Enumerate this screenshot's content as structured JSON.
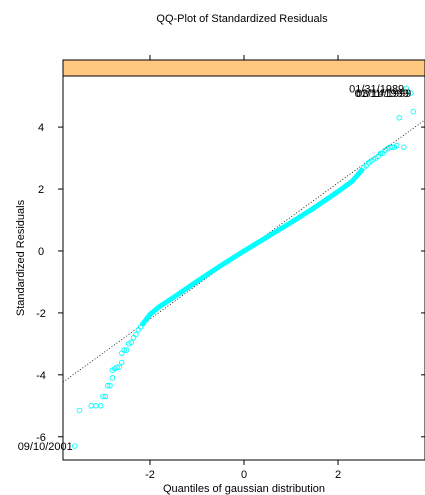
{
  "chart_data": {
    "type": "scatter",
    "title": "QQ-Plot of Standardized Residuals",
    "xlabel": "Quantiles of gaussian distribution",
    "ylabel": "Standardized Residuals",
    "strip_label": "",
    "xlim": [
      -3.85,
      3.85
    ],
    "ylim": [
      -6.75,
      5.65
    ],
    "x_ticks": [
      -2,
      0,
      2
    ],
    "y_ticks": [
      -6,
      -4,
      -2,
      0,
      2,
      4
    ],
    "x_tick_labels": [
      "-2",
      "0",
      "2"
    ],
    "y_tick_labels": [
      "-6",
      "-4",
      "-2",
      "0",
      "2",
      "4"
    ],
    "reference_line": {
      "intercept": 0,
      "slope": 1.1
    },
    "point_color": "#00ffff",
    "strip_color": "#ffc880",
    "points": [
      [
        -3.6,
        -6.3
      ],
      [
        -3.5,
        -5.15
      ],
      [
        -3.25,
        -5.0
      ],
      [
        -3.15,
        -5.0
      ],
      [
        -3.05,
        -5.0
      ],
      [
        -3.0,
        -4.7
      ],
      [
        -2.95,
        -4.7
      ],
      [
        -2.9,
        -4.35
      ],
      [
        -2.85,
        -4.35
      ],
      [
        -2.8,
        -4.1
      ],
      [
        -2.8,
        -3.85
      ],
      [
        -2.75,
        -3.8
      ],
      [
        -2.7,
        -3.75
      ],
      [
        -2.65,
        -3.75
      ],
      [
        -2.6,
        -3.6
      ],
      [
        -2.6,
        -3.3
      ],
      [
        -2.55,
        -3.2
      ],
      [
        -2.5,
        -3.2
      ],
      [
        -2.45,
        -3.0
      ],
      [
        -2.4,
        -2.95
      ],
      [
        -2.35,
        -2.8
      ],
      [
        -2.3,
        -2.7
      ],
      [
        -2.25,
        -2.55
      ],
      [
        -2.2,
        -2.45
      ],
      [
        -2.15,
        -2.35
      ],
      [
        2.5,
        2.6
      ],
      [
        2.55,
        2.7
      ],
      [
        2.6,
        2.75
      ],
      [
        2.65,
        2.85
      ],
      [
        2.7,
        2.9
      ],
      [
        2.75,
        2.95
      ],
      [
        2.8,
        3.0
      ],
      [
        2.85,
        3.05
      ],
      [
        2.9,
        3.15
      ],
      [
        2.95,
        3.15
      ],
      [
        3.0,
        3.25
      ],
      [
        3.05,
        3.3
      ],
      [
        3.1,
        3.35
      ],
      [
        3.15,
        3.35
      ],
      [
        3.2,
        3.35
      ],
      [
        3.25,
        3.4
      ],
      [
        3.3,
        4.3
      ],
      [
        3.4,
        3.35
      ],
      [
        3.45,
        5.25
      ],
      [
        3.55,
        5.1
      ],
      [
        3.6,
        4.5
      ]
    ],
    "central_curve": [
      [
        -2.15,
        -2.35
      ],
      [
        -2.0,
        -2.05
      ],
      [
        -1.8,
        -1.8
      ],
      [
        -1.5,
        -1.5
      ],
      [
        -1.0,
        -0.98
      ],
      [
        -0.5,
        -0.48
      ],
      [
        0,
        0
      ],
      [
        0.5,
        0.46
      ],
      [
        1.0,
        0.92
      ],
      [
        1.5,
        1.4
      ],
      [
        2.0,
        1.92
      ],
      [
        2.3,
        2.25
      ],
      [
        2.5,
        2.6
      ]
    ],
    "annotations": [
      {
        "text": "09/10/2001",
        "x": -3.6,
        "y": -6.3,
        "anchor": "end"
      },
      {
        "text": "01/31/1989",
        "x": 3.45,
        "y": 5.25,
        "anchor": "end"
      },
      {
        "text": "01/11/1999",
        "x": 3.55,
        "y": 5.1,
        "anchor": "end"
      },
      {
        "text": "03/14/1999",
        "x": 3.6,
        "y": 5.1,
        "anchor": "end"
      }
    ]
  }
}
